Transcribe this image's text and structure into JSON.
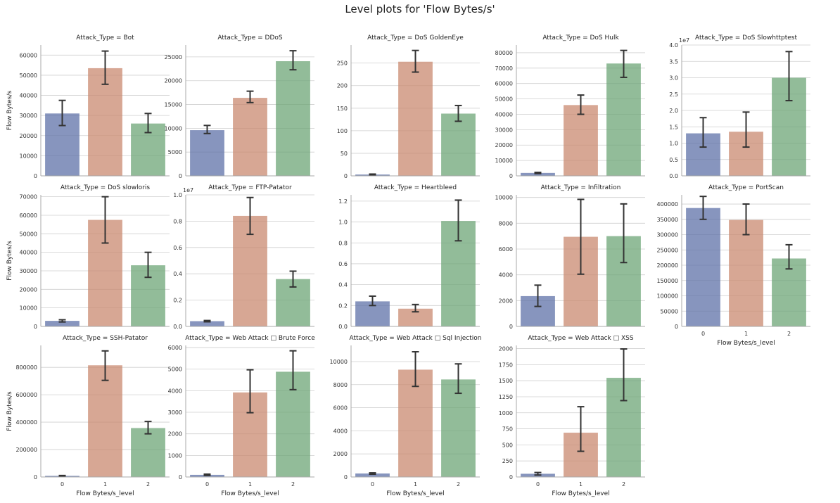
{
  "figure": {
    "title": "Level plots for 'Flow Bytes/s'"
  },
  "colors": {
    "levels": [
      "#5f71a8",
      "#c98a70",
      "#6ea677"
    ],
    "error": "#333333",
    "grid": "#cfcfcf",
    "axis": "#aaaaaa"
  },
  "chart_data": [
    {
      "type": "bar",
      "title": "Attack_Type = Bot",
      "ylabel": "Flow Bytes/s",
      "xlabel": "",
      "categories": [
        "0",
        "1",
        "2"
      ],
      "values": [
        31000,
        53500,
        26000
      ],
      "err_low": [
        25000,
        45500,
        21500
      ],
      "err_high": [
        37500,
        62000,
        31000
      ],
      "ylim": [
        0,
        65000
      ],
      "yticks": [
        0,
        10000,
        20000,
        30000,
        40000,
        50000,
        60000
      ],
      "ytick_labels": [
        "0",
        "10000",
        "20000",
        "30000",
        "40000",
        "50000",
        "60000"
      ],
      "offset": ""
    },
    {
      "type": "bar",
      "title": "Attack_Type = DDoS",
      "ylabel": "",
      "xlabel": "",
      "categories": [
        "0",
        "1",
        "2"
      ],
      "values": [
        9600,
        16400,
        24100
      ],
      "err_low": [
        8900,
        15400,
        22300
      ],
      "err_high": [
        10600,
        17800,
        26300
      ],
      "ylim": [
        0,
        27500
      ],
      "yticks": [
        0,
        5000,
        10000,
        15000,
        20000,
        25000
      ],
      "ytick_labels": [
        "0",
        "5000",
        "10000",
        "15000",
        "20000",
        "25000"
      ],
      "offset": ""
    },
    {
      "type": "bar",
      "title": "Attack_Type = DoS GoldenEye",
      "ylabel": "",
      "xlabel": "",
      "categories": [
        "0",
        "1",
        "2"
      ],
      "values": [
        3,
        253,
        138
      ],
      "err_low": [
        2,
        230,
        121
      ],
      "err_high": [
        4,
        278,
        156
      ],
      "ylim": [
        0,
        290
      ],
      "yticks": [
        0,
        50,
        100,
        150,
        200,
        250
      ],
      "ytick_labels": [
        "0",
        "50",
        "100",
        "150",
        "200",
        "250"
      ],
      "offset": ""
    },
    {
      "type": "bar",
      "title": "Attack_Type = DoS Hulk",
      "ylabel": "",
      "xlabel": "",
      "categories": [
        "0",
        "1",
        "2"
      ],
      "values": [
        1900,
        46000,
        73000
      ],
      "err_low": [
        1500,
        40000,
        64000
      ],
      "err_high": [
        2300,
        52500,
        81500
      ],
      "ylim": [
        0,
        85000
      ],
      "yticks": [
        0,
        10000,
        20000,
        30000,
        40000,
        50000,
        60000,
        70000,
        80000
      ],
      "ytick_labels": [
        "0",
        "10000",
        "20000",
        "30000",
        "40000",
        "50000",
        "60000",
        "70000",
        "80000"
      ],
      "offset": ""
    },
    {
      "type": "bar",
      "title": "Attack_Type = DoS Slowhttptest",
      "ylabel": "",
      "xlabel": "",
      "categories": [
        "0",
        "1",
        "2"
      ],
      "values": [
        1.3,
        1.35,
        3.0
      ],
      "err_low": [
        0.88,
        0.88,
        2.3
      ],
      "err_high": [
        1.78,
        1.95,
        3.8
      ],
      "ylim": [
        0,
        4.0
      ],
      "yticks": [
        0,
        0.5,
        1.0,
        1.5,
        2.0,
        2.5,
        3.0,
        3.5,
        4.0
      ],
      "ytick_labels": [
        "0.0",
        "0.5",
        "1.0",
        "1.5",
        "2.0",
        "2.5",
        "3.0",
        "3.5",
        "4.0"
      ],
      "offset": "1e7"
    },
    {
      "type": "bar",
      "title": "Attack_Type = DoS slowloris",
      "ylabel": "Flow Bytes/s",
      "xlabel": "",
      "categories": [
        "0",
        "1",
        "2"
      ],
      "values": [
        3000,
        57500,
        33000
      ],
      "err_low": [
        2400,
        45000,
        26500
      ],
      "err_high": [
        3600,
        70000,
        40000
      ],
      "ylim": [
        0,
        71000
      ],
      "yticks": [
        0,
        10000,
        20000,
        30000,
        40000,
        50000,
        60000,
        70000
      ],
      "ytick_labels": [
        "0",
        "10000",
        "20000",
        "30000",
        "40000",
        "50000",
        "60000",
        "70000"
      ],
      "offset": ""
    },
    {
      "type": "bar",
      "title": "Attack_Type = FTP-Patator",
      "ylabel": "",
      "xlabel": "",
      "categories": [
        "0",
        "1",
        "2"
      ],
      "values": [
        0.04,
        0.84,
        0.36
      ],
      "err_low": [
        0.035,
        0.7,
        0.3
      ],
      "err_high": [
        0.045,
        0.98,
        0.42
      ],
      "ylim": [
        0,
        1.0
      ],
      "yticks": [
        0,
        0.2,
        0.4,
        0.6,
        0.8,
        1.0
      ],
      "ytick_labels": [
        "0.0",
        "0.2",
        "0.4",
        "0.6",
        "0.8",
        "1.0"
      ],
      "offset": "1e7"
    },
    {
      "type": "bar",
      "title": "Attack_Type = Heartbleed",
      "ylabel": "",
      "xlabel": "",
      "categories": [
        "0",
        "1",
        "2"
      ],
      "values": [
        0.24,
        0.17,
        1.01
      ],
      "err_low": [
        0.2,
        0.14,
        0.82
      ],
      "err_high": [
        0.29,
        0.21,
        1.21
      ],
      "ylim": [
        0,
        1.26
      ],
      "yticks": [
        0,
        0.2,
        0.4,
        0.6,
        0.8,
        1.0,
        1.2
      ],
      "ytick_labels": [
        "0.0",
        "0.2",
        "0.4",
        "0.6",
        "0.8",
        "1.0",
        "1.2"
      ],
      "offset": ""
    },
    {
      "type": "bar",
      "title": "Attack_Type = Infiltration",
      "ylabel": "",
      "xlabel": "",
      "categories": [
        "0",
        "1",
        "2"
      ],
      "values": [
        2350,
        6950,
        7000
      ],
      "err_low": [
        1550,
        4050,
        4950
      ],
      "err_high": [
        3200,
        9850,
        9500
      ],
      "ylim": [
        0,
        10200
      ],
      "yticks": [
        0,
        2000,
        4000,
        6000,
        8000,
        10000
      ],
      "ytick_labels": [
        "0",
        "2000",
        "4000",
        "6000",
        "8000",
        "10000"
      ],
      "offset": ""
    },
    {
      "type": "bar",
      "title": "Attack_Type = PortScan",
      "ylabel": "",
      "xlabel": "Flow Bytes/s_level",
      "categories": [
        "0",
        "1",
        "2"
      ],
      "values": [
        387000,
        348000,
        222000
      ],
      "err_low": [
        350000,
        300000,
        188000
      ],
      "err_high": [
        425000,
        400000,
        267000
      ],
      "ylim": [
        0,
        430000
      ],
      "yticks": [
        0,
        50000,
        100000,
        150000,
        200000,
        250000,
        300000,
        350000,
        400000
      ],
      "ytick_labels": [
        "0",
        "50000",
        "100000",
        "150000",
        "200000",
        "250000",
        "300000",
        "350000",
        "400000"
      ],
      "offset": ""
    },
    {
      "type": "bar",
      "title": "Attack_Type = SSH-Patator",
      "ylabel": "Flow Bytes/s",
      "xlabel": "Flow Bytes/s_level",
      "categories": [
        "0",
        "1",
        "2"
      ],
      "values": [
        8000,
        815000,
        357000
      ],
      "err_low": [
        5000,
        705000,
        315000
      ],
      "err_high": [
        11000,
        920000,
        405000
      ],
      "ylim": [
        0,
        960000
      ],
      "yticks": [
        0,
        200000,
        400000,
        600000,
        800000
      ],
      "ytick_labels": [
        "0",
        "200000",
        "400000",
        "600000",
        "800000"
      ],
      "offset": ""
    },
    {
      "type": "bar",
      "title": "Attack_Type = Web Attack □ Brute Force",
      "ylabel": "",
      "xlabel": "Flow Bytes/s_level",
      "categories": [
        "0",
        "1",
        "2"
      ],
      "values": [
        100,
        3920,
        4880
      ],
      "err_low": [
        70,
        2980,
        4050
      ],
      "err_high": [
        130,
        4970,
        5850
      ],
      "ylim": [
        0,
        6100
      ],
      "yticks": [
        0,
        1000,
        2000,
        3000,
        4000,
        5000,
        6000
      ],
      "ytick_labels": [
        "0",
        "1000",
        "2000",
        "3000",
        "4000",
        "5000",
        "6000"
      ],
      "offset": ""
    },
    {
      "type": "bar",
      "title": "Attack_Type = Web Attack □ Sql Injection",
      "ylabel": "",
      "xlabel": "Flow Bytes/s_level",
      "categories": [
        "0",
        "1",
        "2"
      ],
      "values": [
        300,
        9300,
        8450
      ],
      "err_low": [
        240,
        7850,
        7250
      ],
      "err_high": [
        360,
        10850,
        9800
      ],
      "ylim": [
        0,
        11400
      ],
      "yticks": [
        0,
        2000,
        4000,
        6000,
        8000,
        10000
      ],
      "ytick_labels": [
        "0",
        "2000",
        "4000",
        "6000",
        "8000",
        "10000"
      ],
      "offset": ""
    },
    {
      "type": "bar",
      "title": "Attack_Type = Web Attack □ XSS",
      "ylabel": "",
      "xlabel": "Flow Bytes/s_level",
      "categories": [
        "0",
        "1",
        "2"
      ],
      "values": [
        50,
        690,
        1545
      ],
      "err_low": [
        30,
        400,
        1190
      ],
      "err_high": [
        70,
        1095,
        1995
      ],
      "ylim": [
        0,
        2050
      ],
      "yticks": [
        0,
        250,
        500,
        750,
        1000,
        1250,
        1500,
        1750,
        2000
      ],
      "ytick_labels": [
        "0",
        "250",
        "500",
        "750",
        "1000",
        "1250",
        "1500",
        "1750",
        "2000"
      ],
      "offset": ""
    }
  ]
}
